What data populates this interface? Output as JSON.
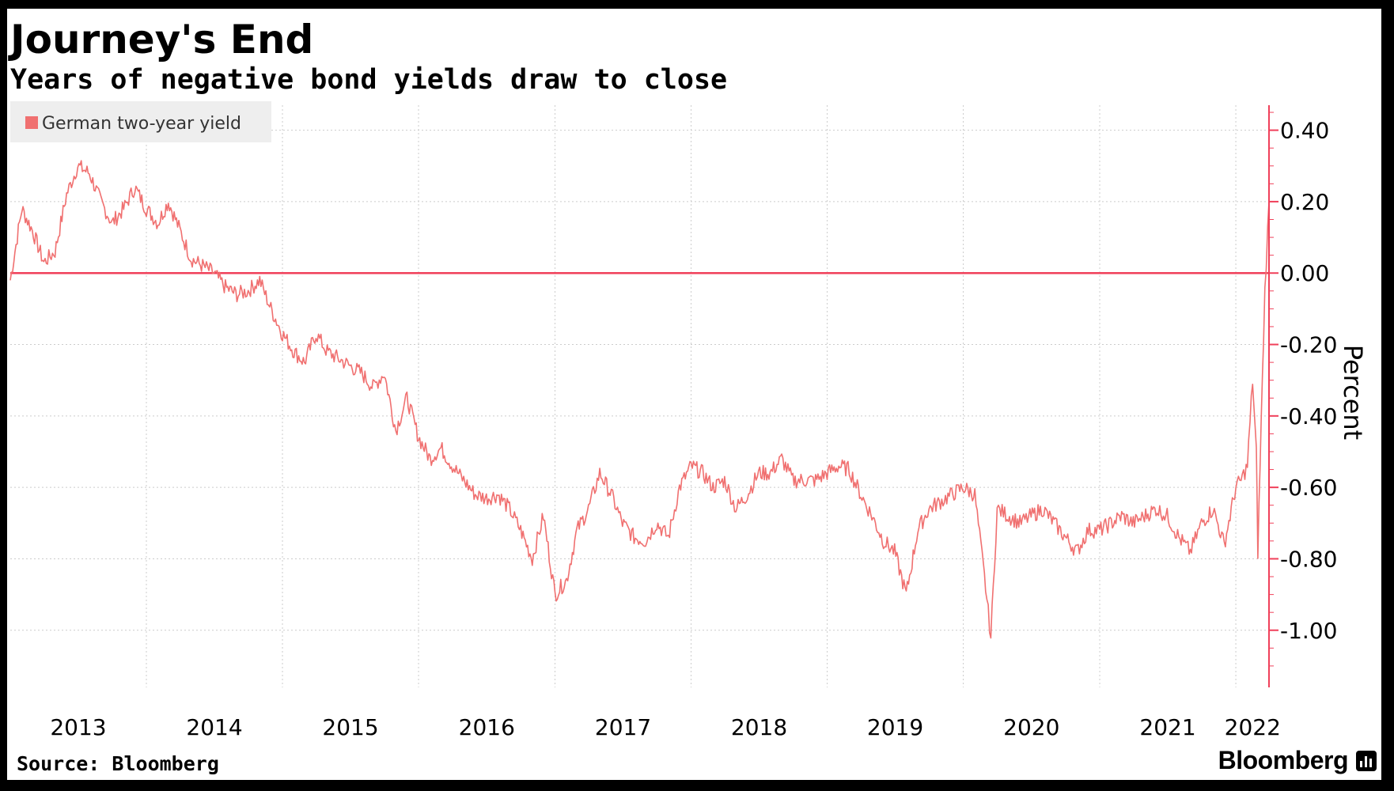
{
  "title": "Journey's End",
  "subtitle": "Years of negative bond yields draw to close",
  "source": "Source: Bloomberg",
  "brand": "Bloomberg",
  "brand_icon": "bloomberg-terminal-icon",
  "colors": {
    "series": "#f07070",
    "zero_line": "#f0405a",
    "grid": "#cccccc",
    "legend_bg": "#eeeeee",
    "frame": "#000000"
  },
  "chart_data": {
    "type": "line",
    "title": "Journey's End",
    "subtitle": "Years of negative bond yields draw to close",
    "ylabel": "Percent",
    "ylim": [
      -1.16,
      0.47
    ],
    "yticks": [
      0.4,
      0.2,
      0.0,
      -0.2,
      -0.4,
      -0.6,
      -0.8,
      -1.0
    ],
    "ytick_labels": [
      "0.40",
      "0.20",
      "0.00",
      "-0.20",
      "-0.40",
      "-0.60",
      "-0.80",
      "-1.00"
    ],
    "y_axis_side": "right",
    "x_range": [
      "2013-01-01",
      "2022-03-31"
    ],
    "xticks": [
      "2013",
      "2014",
      "2015",
      "2016",
      "2017",
      "2018",
      "2019",
      "2020",
      "2021",
      "2022"
    ],
    "legend": {
      "position": "top-left",
      "entries": [
        "German two-year yield"
      ]
    },
    "grid": true,
    "reference_line": {
      "y": 0.0,
      "style": "solid"
    },
    "series": [
      {
        "name": "German two-year yield",
        "x": [
          "2013-01-01",
          "2013-02-01",
          "2013-03-01",
          "2013-04-01",
          "2013-05-01",
          "2013-06-01",
          "2013-07-01",
          "2013-08-01",
          "2013-09-01",
          "2013-10-01",
          "2013-11-01",
          "2013-12-01",
          "2014-01-01",
          "2014-02-01",
          "2014-03-01",
          "2014-04-01",
          "2014-05-01",
          "2014-06-01",
          "2014-07-01",
          "2014-08-01",
          "2014-09-01",
          "2014-10-01",
          "2014-11-01",
          "2014-12-01",
          "2015-01-01",
          "2015-02-01",
          "2015-03-01",
          "2015-04-01",
          "2015-05-01",
          "2015-06-01",
          "2015-07-01",
          "2015-08-01",
          "2015-09-01",
          "2015-10-01",
          "2015-11-01",
          "2015-12-01",
          "2016-01-01",
          "2016-02-01",
          "2016-03-01",
          "2016-04-01",
          "2016-05-01",
          "2016-06-01",
          "2016-07-01",
          "2016-08-01",
          "2016-09-01",
          "2016-10-01",
          "2016-11-01",
          "2016-12-01",
          "2017-01-01",
          "2017-02-01",
          "2017-03-01",
          "2017-04-01",
          "2017-05-01",
          "2017-06-01",
          "2017-07-01",
          "2017-08-01",
          "2017-09-01",
          "2017-10-01",
          "2017-11-01",
          "2017-12-01",
          "2018-01-01",
          "2018-02-01",
          "2018-03-01",
          "2018-04-01",
          "2018-05-01",
          "2018-06-01",
          "2018-07-01",
          "2018-08-01",
          "2018-09-01",
          "2018-10-01",
          "2018-11-01",
          "2018-12-01",
          "2019-01-01",
          "2019-02-01",
          "2019-03-01",
          "2019-04-01",
          "2019-05-01",
          "2019-06-01",
          "2019-07-01",
          "2019-08-01",
          "2019-09-01",
          "2019-10-01",
          "2019-11-01",
          "2019-12-01",
          "2020-01-01",
          "2020-02-01",
          "2020-03-01",
          "2020-03-15",
          "2020-04-01",
          "2020-05-01",
          "2020-06-01",
          "2020-07-01",
          "2020-08-01",
          "2020-09-01",
          "2020-10-01",
          "2020-11-01",
          "2020-12-01",
          "2021-01-01",
          "2021-02-01",
          "2021-03-01",
          "2021-04-01",
          "2021-05-01",
          "2021-06-01",
          "2021-07-01",
          "2021-08-01",
          "2021-09-01",
          "2021-10-01",
          "2021-11-01",
          "2021-12-01",
          "2022-01-01",
          "2022-01-15",
          "2022-02-01",
          "2022-02-15",
          "2022-02-25",
          "2022-03-01",
          "2022-03-10",
          "2022-03-20",
          "2022-03-31"
        ],
        "values": [
          -0.02,
          0.18,
          0.12,
          0.03,
          0.06,
          0.22,
          0.3,
          0.28,
          0.2,
          0.14,
          0.18,
          0.24,
          0.18,
          0.14,
          0.2,
          0.12,
          0.04,
          0.02,
          0.0,
          -0.04,
          -0.06,
          -0.05,
          -0.02,
          -0.1,
          -0.17,
          -0.22,
          -0.25,
          -0.17,
          -0.22,
          -0.24,
          -0.26,
          -0.28,
          -0.32,
          -0.28,
          -0.44,
          -0.35,
          -0.46,
          -0.52,
          -0.49,
          -0.54,
          -0.58,
          -0.62,
          -0.63,
          -0.62,
          -0.66,
          -0.72,
          -0.8,
          -0.68,
          -0.9,
          -0.86,
          -0.72,
          -0.66,
          -0.56,
          -0.62,
          -0.7,
          -0.74,
          -0.75,
          -0.7,
          -0.74,
          -0.6,
          -0.54,
          -0.56,
          -0.6,
          -0.58,
          -0.66,
          -0.62,
          -0.56,
          -0.56,
          -0.52,
          -0.58,
          -0.58,
          -0.58,
          -0.56,
          -0.54,
          -0.55,
          -0.62,
          -0.68,
          -0.75,
          -0.78,
          -0.9,
          -0.72,
          -0.66,
          -0.64,
          -0.62,
          -0.6,
          -0.62,
          -0.88,
          -1.02,
          -0.66,
          -0.68,
          -0.7,
          -0.68,
          -0.66,
          -0.7,
          -0.74,
          -0.78,
          -0.72,
          -0.72,
          -0.7,
          -0.68,
          -0.7,
          -0.68,
          -0.66,
          -0.68,
          -0.74,
          -0.78,
          -0.7,
          -0.66,
          -0.76,
          -0.6,
          -0.58,
          -0.54,
          -0.3,
          -0.5,
          -0.78,
          -0.42,
          -0.05,
          0.2
        ]
      }
    ]
  }
}
